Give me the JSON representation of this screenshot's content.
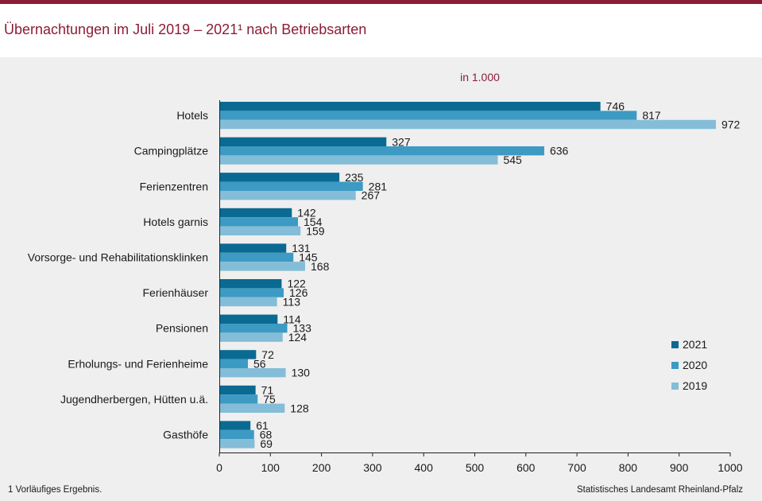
{
  "header": {
    "title": "Übernachtungen im Juli 2019 – 2021¹ nach Betriebsarten"
  },
  "footer": {
    "footnote": "1 Vorläufiges  Ergebnis.",
    "source": "Statistisches Landesamt Rheinland-Pfalz"
  },
  "colors": {
    "accent": "#8c1d35",
    "series_2021": "#0a6a92",
    "series_2020": "#3d9ac3",
    "series_2019": "#84bdd8"
  },
  "chart_data": {
    "type": "bar",
    "orientation": "horizontal",
    "title": "Übernachtungen im Juli 2019 – 2021¹ nach Betriebsarten",
    "unit_label": "in 1.000",
    "categories": [
      "Hotels",
      "Campingplätze",
      "Ferienzentren",
      "Hotels garnis",
      "Vorsorge- und Rehabilitationsklinken",
      "Ferienhäuser",
      "Pensionen",
      "Erholungs- und Ferienheime",
      "Jugendherbergen, Hütten u.ä.",
      "Gasthöfe"
    ],
    "series": [
      {
        "name": "2021",
        "color": "#0a6a92",
        "values": [
          746,
          327,
          235,
          142,
          131,
          122,
          114,
          72,
          71,
          61
        ]
      },
      {
        "name": "2020",
        "color": "#3d9ac3",
        "values": [
          817,
          636,
          281,
          154,
          145,
          126,
          133,
          56,
          75,
          68
        ]
      },
      {
        "name": "2019",
        "color": "#84bdd8",
        "values": [
          972,
          545,
          267,
          159,
          168,
          113,
          124,
          130,
          128,
          69
        ]
      }
    ],
    "xlim": [
      0,
      1000
    ],
    "xticks": [
      0,
      100,
      200,
      300,
      400,
      500,
      600,
      700,
      800,
      900,
      1000
    ],
    "legend_position": "right",
    "grid": false
  }
}
